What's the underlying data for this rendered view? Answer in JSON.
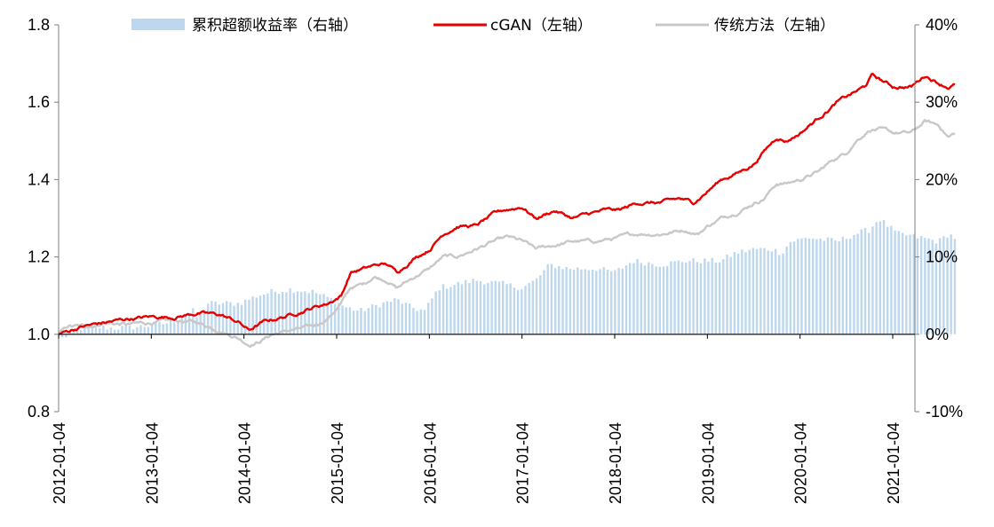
{
  "chart_data": {
    "type": "line",
    "x_tick_labels": [
      "2012-01-04",
      "2013-01-04",
      "2014-01-04",
      "2015-01-04",
      "2016-01-04",
      "2017-01-04",
      "2018-01-04",
      "2019-01-04",
      "2020-01-04",
      "2021-01-04"
    ],
    "y_left": {
      "min": 0.8,
      "max": 1.8,
      "ticks": [
        "0.8",
        "1.0",
        "1.2",
        "1.4",
        "1.6",
        "1.8"
      ]
    },
    "y_right": {
      "min": -0.1,
      "max": 0.4,
      "ticks": [
        "-10%",
        "0%",
        "10%",
        "20%",
        "30%",
        "40%"
      ]
    },
    "grid": false,
    "legend_position": "top",
    "series": [
      {
        "name": "累积超额收益率（右轴）",
        "kind": "bar",
        "axis": "right",
        "color": "#bdd7ee",
        "points": [
          [
            2012.0,
            0.0
          ],
          [
            2012.08,
            -0.005
          ],
          [
            2012.15,
            0.005
          ],
          [
            2012.3,
            0.01
          ],
          [
            2012.6,
            0.008
          ],
          [
            2012.9,
            0.01
          ],
          [
            2013.2,
            0.015
          ],
          [
            2013.45,
            0.03
          ],
          [
            2013.5,
            0.02
          ],
          [
            2013.6,
            0.04
          ],
          [
            2013.75,
            0.04
          ],
          [
            2013.95,
            0.04
          ],
          [
            2014.05,
            0.045
          ],
          [
            2014.15,
            0.05
          ],
          [
            2014.3,
            0.055
          ],
          [
            2014.5,
            0.058
          ],
          [
            2014.75,
            0.055
          ],
          [
            2014.95,
            0.045
          ],
          [
            2015.1,
            0.035
          ],
          [
            2015.25,
            0.03
          ],
          [
            2015.5,
            0.04
          ],
          [
            2015.65,
            0.045
          ],
          [
            2015.8,
            0.035
          ],
          [
            2015.95,
            0.03
          ],
          [
            2016.1,
            0.06
          ],
          [
            2016.3,
            0.065
          ],
          [
            2016.5,
            0.07
          ],
          [
            2016.8,
            0.065
          ],
          [
            2017.0,
            0.06
          ],
          [
            2017.15,
            0.07
          ],
          [
            2017.3,
            0.09
          ],
          [
            2017.5,
            0.085
          ],
          [
            2017.8,
            0.085
          ],
          [
            2018.0,
            0.08
          ],
          [
            2018.2,
            0.095
          ],
          [
            2018.5,
            0.09
          ],
          [
            2018.75,
            0.095
          ],
          [
            2019.0,
            0.095
          ],
          [
            2019.15,
            0.095
          ],
          [
            2019.3,
            0.105
          ],
          [
            2019.5,
            0.11
          ],
          [
            2019.7,
            0.11
          ],
          [
            2019.8,
            0.105
          ],
          [
            2019.9,
            0.12
          ],
          [
            2020.1,
            0.125
          ],
          [
            2020.4,
            0.12
          ],
          [
            2020.6,
            0.13
          ],
          [
            2020.75,
            0.135
          ],
          [
            2020.85,
            0.15
          ],
          [
            2020.95,
            0.14
          ],
          [
            2021.05,
            0.13
          ],
          [
            2021.3,
            0.125
          ],
          [
            2021.5,
            0.12
          ],
          [
            2021.6,
            0.13
          ],
          [
            2021.67,
            0.125
          ]
        ]
      },
      {
        "name": "cGAN（左轴）",
        "kind": "line",
        "axis": "left",
        "color": "#e60000",
        "points": [
          [
            2012.0,
            1.0
          ],
          [
            2012.25,
            1.02
          ],
          [
            2012.5,
            1.03
          ],
          [
            2012.75,
            1.04
          ],
          [
            2013.0,
            1.045
          ],
          [
            2013.25,
            1.045
          ],
          [
            2013.5,
            1.055
          ],
          [
            2013.75,
            1.05
          ],
          [
            2013.95,
            1.03
          ],
          [
            2014.05,
            1.01
          ],
          [
            2014.2,
            1.03
          ],
          [
            2014.5,
            1.05
          ],
          [
            2014.75,
            1.07
          ],
          [
            2014.9,
            1.08
          ],
          [
            2015.05,
            1.1
          ],
          [
            2015.15,
            1.16
          ],
          [
            2015.3,
            1.17
          ],
          [
            2015.45,
            1.18
          ],
          [
            2015.55,
            1.18
          ],
          [
            2015.65,
            1.16
          ],
          [
            2015.85,
            1.2
          ],
          [
            2016.0,
            1.22
          ],
          [
            2016.15,
            1.26
          ],
          [
            2016.3,
            1.28
          ],
          [
            2016.5,
            1.28
          ],
          [
            2016.7,
            1.31
          ],
          [
            2016.8,
            1.32
          ],
          [
            2017.0,
            1.33
          ],
          [
            2017.15,
            1.3
          ],
          [
            2017.35,
            1.32
          ],
          [
            2017.55,
            1.3
          ],
          [
            2017.7,
            1.31
          ],
          [
            2017.9,
            1.32
          ],
          [
            2018.05,
            1.32
          ],
          [
            2018.25,
            1.34
          ],
          [
            2018.5,
            1.34
          ],
          [
            2018.7,
            1.35
          ],
          [
            2018.85,
            1.34
          ],
          [
            2019.0,
            1.37
          ],
          [
            2019.15,
            1.4
          ],
          [
            2019.35,
            1.42
          ],
          [
            2019.5,
            1.44
          ],
          [
            2019.6,
            1.47
          ],
          [
            2019.75,
            1.51
          ],
          [
            2019.85,
            1.5
          ],
          [
            2020.0,
            1.52
          ],
          [
            2020.2,
            1.56
          ],
          [
            2020.4,
            1.6
          ],
          [
            2020.55,
            1.62
          ],
          [
            2020.7,
            1.64
          ],
          [
            2020.78,
            1.67
          ],
          [
            2020.85,
            1.66
          ],
          [
            2021.0,
            1.64
          ],
          [
            2021.2,
            1.64
          ],
          [
            2021.35,
            1.67
          ],
          [
            2021.5,
            1.65
          ],
          [
            2021.6,
            1.64
          ],
          [
            2021.67,
            1.645
          ]
        ]
      },
      {
        "name": "传统方法（左轴）",
        "kind": "line",
        "axis": "left",
        "color": "#c8c8c8",
        "points": [
          [
            2012.0,
            1.0
          ],
          [
            2012.1,
            1.02
          ],
          [
            2012.3,
            1.02
          ],
          [
            2012.5,
            1.03
          ],
          [
            2012.75,
            1.025
          ],
          [
            2013.0,
            1.03
          ],
          [
            2013.25,
            1.035
          ],
          [
            2013.5,
            1.03
          ],
          [
            2013.75,
            1.01
          ],
          [
            2013.95,
            0.99
          ],
          [
            2014.05,
            0.975
          ],
          [
            2014.15,
            0.98
          ],
          [
            2014.3,
            1.0
          ],
          [
            2014.5,
            1.01
          ],
          [
            2014.75,
            1.02
          ],
          [
            2014.9,
            1.04
          ],
          [
            2015.05,
            1.08
          ],
          [
            2015.15,
            1.12
          ],
          [
            2015.3,
            1.13
          ],
          [
            2015.4,
            1.15
          ],
          [
            2015.55,
            1.14
          ],
          [
            2015.65,
            1.12
          ],
          [
            2015.85,
            1.15
          ],
          [
            2016.0,
            1.17
          ],
          [
            2016.15,
            1.2
          ],
          [
            2016.3,
            1.2
          ],
          [
            2016.5,
            1.22
          ],
          [
            2016.7,
            1.24
          ],
          [
            2016.85,
            1.25
          ],
          [
            2017.0,
            1.24
          ],
          [
            2017.15,
            1.22
          ],
          [
            2017.35,
            1.23
          ],
          [
            2017.55,
            1.24
          ],
          [
            2017.8,
            1.24
          ],
          [
            2018.05,
            1.25
          ],
          [
            2018.25,
            1.26
          ],
          [
            2018.5,
            1.26
          ],
          [
            2018.75,
            1.27
          ],
          [
            2018.9,
            1.26
          ],
          [
            2019.0,
            1.28
          ],
          [
            2019.15,
            1.3
          ],
          [
            2019.35,
            1.32
          ],
          [
            2019.5,
            1.34
          ],
          [
            2019.6,
            1.35
          ],
          [
            2019.75,
            1.39
          ],
          [
            2019.85,
            1.39
          ],
          [
            2020.0,
            1.4
          ],
          [
            2020.2,
            1.42
          ],
          [
            2020.35,
            1.45
          ],
          [
            2020.5,
            1.47
          ],
          [
            2020.6,
            1.5
          ],
          [
            2020.75,
            1.53
          ],
          [
            2020.85,
            1.53
          ],
          [
            2021.0,
            1.52
          ],
          [
            2021.2,
            1.52
          ],
          [
            2021.35,
            1.55
          ],
          [
            2021.5,
            1.54
          ],
          [
            2021.6,
            1.51
          ],
          [
            2021.67,
            1.52
          ]
        ]
      }
    ]
  }
}
